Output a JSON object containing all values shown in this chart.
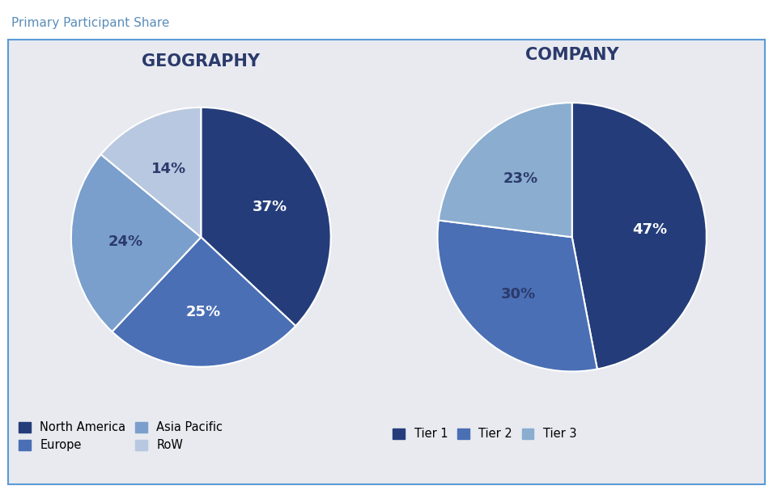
{
  "title": "Primary Participant Share",
  "title_color": "#5b8db8",
  "background_color": "#e8eaf0",
  "box_edge_color": "#5b9bd5",
  "panel_bg": "#e8eaf0",
  "geo_title": "GEOGRAPHY",
  "geo_values": [
    37,
    25,
    24,
    14
  ],
  "geo_labels": [
    "37%",
    "25%",
    "24%",
    "14%"
  ],
  "geo_label_colors": [
    "white",
    "white",
    "#2b3a6b",
    "#2b3a6b"
  ],
  "geo_colors": [
    "#243d7a",
    "#4a6fb5",
    "#7b9fcc",
    "#b8c8e0"
  ],
  "geo_legend_labels": [
    "North America",
    "Europe",
    "Asia Pacific",
    "RoW"
  ],
  "comp_title": "COMPANY",
  "comp_values": [
    47,
    30,
    23
  ],
  "comp_labels": [
    "47%",
    "30%",
    "23%"
  ],
  "comp_label_colors": [
    "white",
    "#2b3a6b",
    "#2b3a6b"
  ],
  "comp_colors": [
    "#243d7a",
    "#4a6fb5",
    "#8aadd0"
  ],
  "comp_legend_labels": [
    "Tier 1",
    "Tier 2",
    "Tier 3"
  ],
  "label_fontsize": 13,
  "title_fontsize": 11,
  "chart_title_fontsize": 15,
  "legend_fontsize": 10.5
}
